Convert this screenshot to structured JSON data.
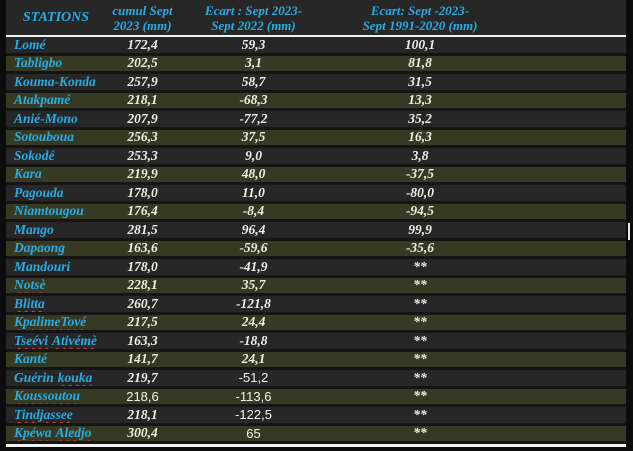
{
  "title": "Rainfall table - September 2023 by station",
  "colors": {
    "accent_cyan": "#29ace3",
    "row_dark": "#272727",
    "row_olive": "#373a22",
    "page_background": "#0c0c0c",
    "divider_white": "#f2f2f2",
    "value_text": "#efeee6",
    "spellcheck_red": "#d93a2b",
    "cursor_white": "#e9e9e9"
  },
  "columns": [
    {
      "id": "stations",
      "label_lines": [
        "STATIONS"
      ]
    },
    {
      "id": "cumul",
      "label_lines": [
        "cumul Sept",
        "2023 (mm)"
      ]
    },
    {
      "id": "ecart_2022",
      "label_lines": [
        "Ecart : Sept 2023-",
        "Sept 2022 (mm)"
      ]
    },
    {
      "id": "ecart_1991",
      "label_lines": [
        "Ecart: Sept -2023-",
        "Sept 1991-2020 (mm)"
      ]
    }
  ],
  "rows": [
    {
      "station": "Lomé",
      "cumul": "172,4",
      "ecart_2022": "59,3",
      "ecart_1991": "100,1"
    },
    {
      "station": "Tabligbo",
      "cumul": "202,5",
      "ecart_2022": "3,1",
      "ecart_1991": "81,8"
    },
    {
      "station": "Kouma-Konda",
      "cumul": "257,9",
      "ecart_2022": "58,7",
      "ecart_1991": "31,5"
    },
    {
      "station": "Atakpamé",
      "cumul": "218,1",
      "ecart_2022": "-68,3",
      "ecart_1991": "13,3"
    },
    {
      "station": "Anié-Mono",
      "cumul": "207,9",
      "ecart_2022": "-77,2",
      "ecart_1991": "35,2"
    },
    {
      "station": "Sotouboua",
      "cumul": "256,3",
      "ecart_2022": "37,5",
      "ecart_1991": "16,3"
    },
    {
      "station": "Sokodé",
      "cumul": "253,3",
      "ecart_2022": "9,0",
      "ecart_1991": "3,8"
    },
    {
      "station": "Kara",
      "cumul": "219,9",
      "ecart_2022": "48,0",
      "ecart_1991": "-37,5"
    },
    {
      "station": "Pagouda",
      "cumul": "178,0",
      "ecart_2022": "11,0",
      "ecart_1991": "-80,0"
    },
    {
      "station": "Niamtougou",
      "cumul": "176,4",
      "ecart_2022": "-8,4",
      "ecart_1991": "-94,5"
    },
    {
      "station": "Mango",
      "cumul": "281,5",
      "ecart_2022": "96,4",
      "ecart_1991": "99,9"
    },
    {
      "station": "Dapaong",
      "cumul": "163,6",
      "ecart_2022": "-59,6",
      "ecart_1991": "-35,6"
    },
    {
      "station": "Mandouri",
      "cumul": "178,0",
      "ecart_2022": "-41,9",
      "ecart_1991": "**"
    },
    {
      "station": "Notsè",
      "wavy": "all",
      "cumul": "228,1",
      "ecart_2022": "35,7",
      "ecart_1991": "**"
    },
    {
      "station": "Blitta",
      "wavy": "all",
      "cumul": "260,7",
      "ecart_2022": "-121,8",
      "ecart_1991": "**"
    },
    {
      "station": "KpalimeTové",
      "wavy": "all",
      "cumul": "217,5",
      "ecart_2022": "24,4",
      "ecart_1991": "**"
    },
    {
      "station": "Tseévi Ativémè",
      "wavy": "all",
      "cumul": "163,3",
      "ecart_2022": "-18,8",
      "ecart_1991": "**"
    },
    {
      "station": "Kanté",
      "cumul": "141,7",
      "ecart_2022": "24,1",
      "ecart_1991": "**"
    },
    {
      "station": "Guérin kouka",
      "wavy": [
        1
      ],
      "cumul": "219,7",
      "ecart_2022": "-51,2",
      "ecart_1991": "**",
      "plain": [
        "ecart_2022"
      ]
    },
    {
      "station": "Koussoutou",
      "wavy": "all",
      "cumul": "218,6",
      "ecart_2022": "-113,6",
      "ecart_1991": "**",
      "plain": [
        "cumul",
        "ecart_2022"
      ]
    },
    {
      "station": "Tindjassee",
      "wavy": "all",
      "cumul": "218,1",
      "ecart_2022": "-122,5",
      "ecart_1991": "**",
      "plain": [
        "ecart_2022"
      ]
    },
    {
      "station": "Kpéwa Aledjo",
      "wavy": "all",
      "cumul": "300,4",
      "ecart_2022": "65",
      "ecart_1991": "**",
      "plain": [
        "ecart_2022"
      ]
    }
  ]
}
